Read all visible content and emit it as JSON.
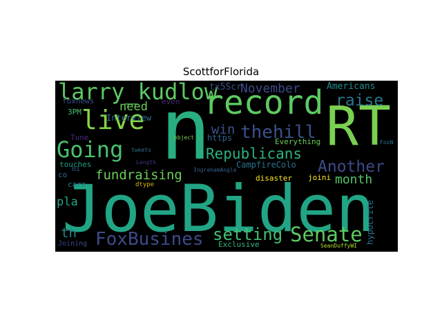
{
  "title": "ScottforFlorida",
  "words": [
    {
      "text": "JoeBiden",
      "color": "#21a585"
    },
    {
      "text": "n",
      "color": "#29af7f"
    },
    {
      "text": "RT",
      "color": "#7ad151"
    },
    {
      "text": "record",
      "color": "#5ec962"
    },
    {
      "text": "Going",
      "color": "#4ac16d"
    },
    {
      "text": "live",
      "color": "#86d549"
    },
    {
      "text": "larry_kudlow",
      "color": "#5ec962"
    },
    {
      "text": "thehill",
      "color": "#3b518b"
    },
    {
      "text": "FoxBusines",
      "color": "#3e4a89"
    },
    {
      "text": "Senate",
      "color": "#5ec962"
    },
    {
      "text": "setting",
      "color": "#44bf70"
    },
    {
      "text": "Republicans",
      "color": "#2db27d"
    },
    {
      "text": "Another",
      "color": "#3e4a89"
    },
    {
      "text": "fundraising",
      "color": "#6ccd5a"
    },
    {
      "text": "raise",
      "color": "#2a788e"
    },
    {
      "text": "month",
      "color": "#52c569"
    },
    {
      "text": "November",
      "color": "#3e4a89"
    },
    {
      "text": "need",
      "color": "#6ccd5a"
    },
    {
      "text": "win",
      "color": "#3b518b"
    },
    {
      "text": "th",
      "color": "#238a8d"
    },
    {
      "text": "pla",
      "color": "#21a585"
    },
    {
      "text": "tx5Scr",
      "color": "#3b528b"
    },
    {
      "text": "Americans",
      "color": "#228c8d"
    },
    {
      "text": "foxnews",
      "color": "#3b528b"
    },
    {
      "text": "even",
      "color": "#482878"
    },
    {
      "text": "3PM",
      "color": "#4ac16d"
    },
    {
      "text": "Interview",
      "color": "#2c728e"
    },
    {
      "text": "https",
      "color": "#33638d"
    },
    {
      "text": "Tune",
      "color": "#472d7b"
    },
    {
      "text": "tweets",
      "color": "#2c728e"
    },
    {
      "text": "object",
      "color": "#7ad151"
    },
    {
      "text": "FoxN",
      "color": "#2c728e"
    },
    {
      "text": "Everything",
      "color": "#6ccd5a"
    },
    {
      "text": "touches",
      "color": "#1fa088"
    },
    {
      "text": "Length",
      "color": "#46337e"
    },
    {
      "text": "CampfireColo",
      "color": "#2c728e"
    },
    {
      "text": "IngrahamAngle",
      "color": "#33638d"
    },
    {
      "text": "ni",
      "color": "#33638d"
    },
    {
      "text": "co",
      "color": "#31688e"
    },
    {
      "text": "care",
      "color": "#2a788e"
    },
    {
      "text": "dtype",
      "color": "#d8b50a"
    },
    {
      "text": "disaster",
      "color": "#fde725"
    },
    {
      "text": "joini",
      "color": "#fde725"
    },
    {
      "text": "hypocrite",
      "color": "#2c728e"
    },
    {
      "text": "Joining",
      "color": "#3e4a89"
    },
    {
      "text": "Exclusive",
      "color": "#35b779"
    },
    {
      "text": "SeanDuffyWI",
      "color": "#b5de2b"
    }
  ]
}
